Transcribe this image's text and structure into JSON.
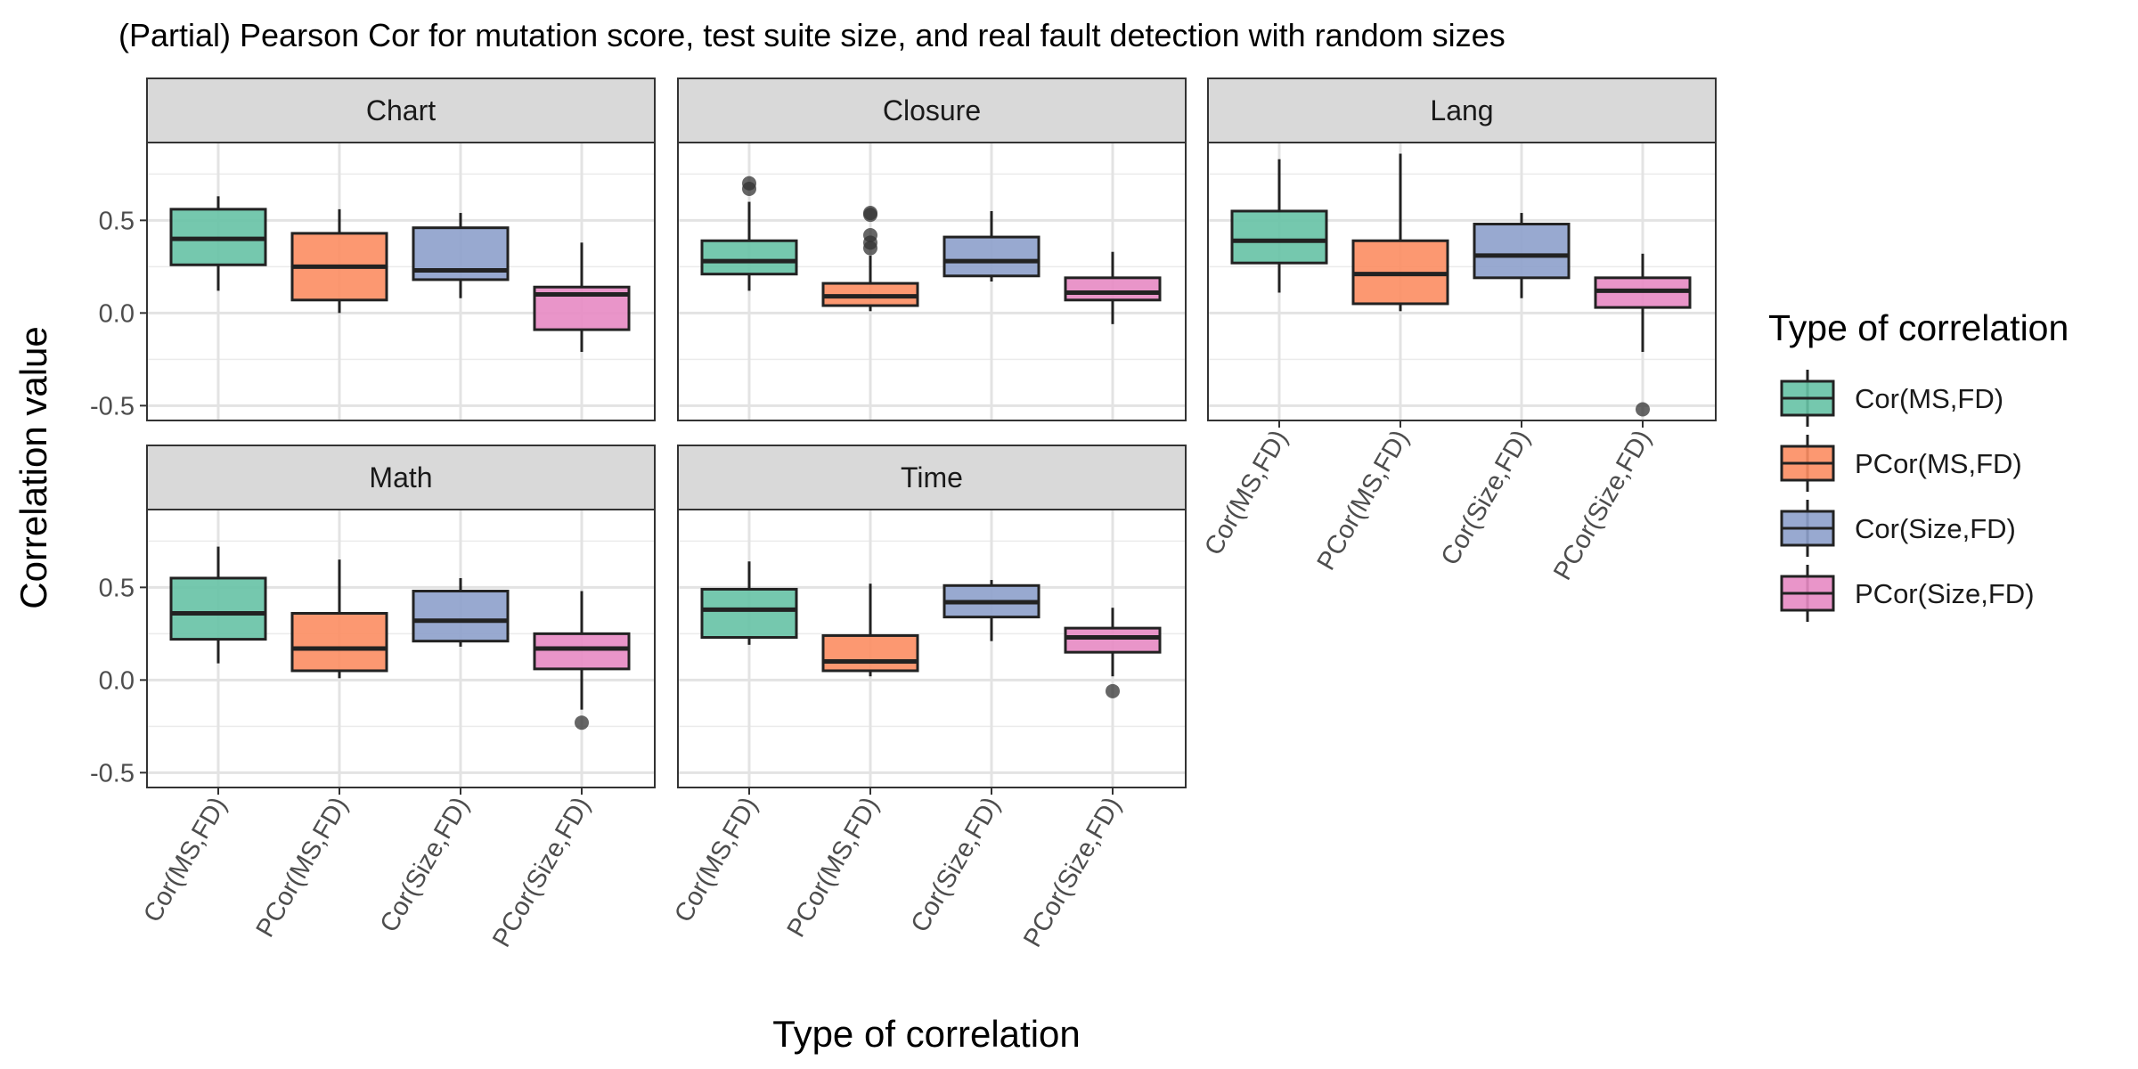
{
  "chart_data": {
    "type": "boxplot",
    "title": "(Partial) Pearson Cor for mutation score, test suite size, and real fault detection with random sizes",
    "xlabel": "Type of correlation",
    "ylabel": "Correlation value",
    "ylim": [
      -0.58,
      0.92
    ],
    "yticks": [
      -0.5,
      0.0,
      0.5
    ],
    "ytick_labels": [
      "-0.5",
      "0.0",
      "0.5"
    ],
    "grid": true,
    "categories": [
      "Cor(MS,FD)",
      "PCor(MS,FD)",
      "Cor(Size,FD)",
      "PCor(Size,FD)"
    ],
    "colors": [
      "#66C2A5",
      "#FC8D62",
      "#8DA0CB",
      "#E78AC3"
    ],
    "legend": {
      "title": "Type of correlation",
      "position": "right",
      "items": [
        "Cor(MS,FD)",
        "PCor(MS,FD)",
        "Cor(Size,FD)",
        "PCor(Size,FD)"
      ]
    },
    "panels": [
      {
        "name": "Chart",
        "boxes": [
          {
            "category": "Cor(MS,FD)",
            "min": 0.12,
            "q1": 0.26,
            "median": 0.4,
            "q3": 0.56,
            "max": 0.63,
            "outliers": []
          },
          {
            "category": "PCor(MS,FD)",
            "min": 0.0,
            "q1": 0.07,
            "median": 0.25,
            "q3": 0.43,
            "max": 0.56,
            "outliers": []
          },
          {
            "category": "Cor(Size,FD)",
            "min": 0.08,
            "q1": 0.18,
            "median": 0.23,
            "q3": 0.46,
            "max": 0.54,
            "outliers": []
          },
          {
            "category": "PCor(Size,FD)",
            "min": -0.21,
            "q1": -0.09,
            "median": 0.1,
            "q3": 0.14,
            "max": 0.38,
            "outliers": []
          }
        ]
      },
      {
        "name": "Closure",
        "boxes": [
          {
            "category": "Cor(MS,FD)",
            "min": 0.12,
            "q1": 0.21,
            "median": 0.28,
            "q3": 0.39,
            "max": 0.6,
            "outliers": [
              0.67,
              0.7
            ]
          },
          {
            "category": "PCor(MS,FD)",
            "min": 0.01,
            "q1": 0.04,
            "median": 0.09,
            "q3": 0.16,
            "max": 0.31,
            "outliers": [
              0.35,
              0.38,
              0.42,
              0.53,
              0.54
            ]
          },
          {
            "category": "Cor(Size,FD)",
            "min": 0.17,
            "q1": 0.2,
            "median": 0.28,
            "q3": 0.41,
            "max": 0.55,
            "outliers": []
          },
          {
            "category": "PCor(Size,FD)",
            "min": -0.06,
            "q1": 0.07,
            "median": 0.11,
            "q3": 0.19,
            "max": 0.33,
            "outliers": []
          }
        ]
      },
      {
        "name": "Lang",
        "boxes": [
          {
            "category": "Cor(MS,FD)",
            "min": 0.11,
            "q1": 0.27,
            "median": 0.39,
            "q3": 0.55,
            "max": 0.83,
            "outliers": []
          },
          {
            "category": "PCor(MS,FD)",
            "min": 0.01,
            "q1": 0.05,
            "median": 0.21,
            "q3": 0.39,
            "max": 0.86,
            "outliers": []
          },
          {
            "category": "Cor(Size,FD)",
            "min": 0.08,
            "q1": 0.19,
            "median": 0.31,
            "q3": 0.48,
            "max": 0.54,
            "outliers": []
          },
          {
            "category": "PCor(Size,FD)",
            "min": -0.21,
            "q1": 0.03,
            "median": 0.12,
            "q3": 0.19,
            "max": 0.32,
            "outliers": [
              -0.52
            ]
          }
        ]
      },
      {
        "name": "Math",
        "boxes": [
          {
            "category": "Cor(MS,FD)",
            "min": 0.09,
            "q1": 0.22,
            "median": 0.36,
            "q3": 0.55,
            "max": 0.72,
            "outliers": []
          },
          {
            "category": "PCor(MS,FD)",
            "min": 0.01,
            "q1": 0.05,
            "median": 0.17,
            "q3": 0.36,
            "max": 0.65,
            "outliers": []
          },
          {
            "category": "Cor(Size,FD)",
            "min": 0.18,
            "q1": 0.21,
            "median": 0.32,
            "q3": 0.48,
            "max": 0.55,
            "outliers": []
          },
          {
            "category": "PCor(Size,FD)",
            "min": -0.16,
            "q1": 0.06,
            "median": 0.17,
            "q3": 0.25,
            "max": 0.48,
            "outliers": [
              -0.23
            ]
          }
        ]
      },
      {
        "name": "Time",
        "boxes": [
          {
            "category": "Cor(MS,FD)",
            "min": 0.19,
            "q1": 0.23,
            "median": 0.38,
            "q3": 0.49,
            "max": 0.64,
            "outliers": []
          },
          {
            "category": "PCor(MS,FD)",
            "min": 0.02,
            "q1": 0.05,
            "median": 0.1,
            "q3": 0.24,
            "max": 0.52,
            "outliers": []
          },
          {
            "category": "Cor(Size,FD)",
            "min": 0.21,
            "q1": 0.34,
            "median": 0.42,
            "q3": 0.51,
            "max": 0.54,
            "outliers": []
          },
          {
            "category": "PCor(Size,FD)",
            "min": 0.02,
            "q1": 0.15,
            "median": 0.23,
            "q3": 0.28,
            "max": 0.39,
            "outliers": [
              -0.06
            ]
          }
        ]
      }
    ]
  }
}
